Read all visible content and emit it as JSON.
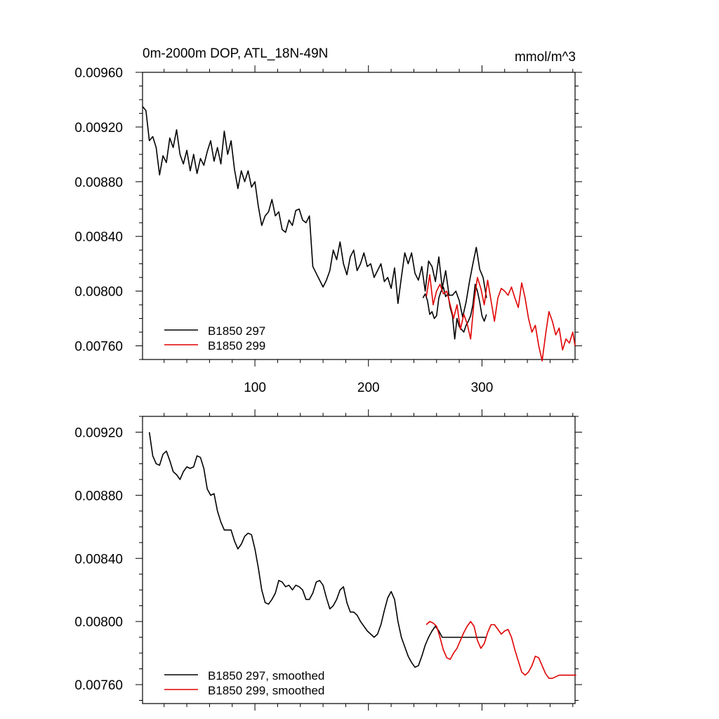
{
  "chart_data": [
    {
      "type": "line",
      "title": "0m-2000m DOP, ATL_18N-49N",
      "units": "mmol/m^3",
      "xlim": [
        1,
        382
      ],
      "ylim": [
        0.0075,
        0.0096
      ],
      "x_ticks": [
        100,
        200,
        300
      ],
      "y_ticks": [
        "0.00760",
        "0.00800",
        "0.00840",
        "0.00880",
        "0.00920",
        "0.00960"
      ],
      "legend": "bottom-left",
      "series": [
        {
          "name": "B1850 297",
          "color": "#000000",
          "x": [
            1,
            4,
            7,
            10,
            13,
            16,
            19,
            22,
            25,
            28,
            31,
            34,
            37,
            40,
            43,
            46,
            49,
            52,
            55,
            58,
            61,
            64,
            67,
            70,
            73,
            76,
            79,
            82,
            85,
            88,
            91,
            94,
            97,
            100,
            103,
            106,
            109,
            112,
            115,
            118,
            121,
            124,
            127,
            130,
            133,
            136,
            139,
            142,
            145,
            148,
            151,
            154,
            157,
            160,
            163,
            166,
            169,
            172,
            175,
            178,
            181,
            184,
            187,
            190,
            193,
            196,
            199,
            202,
            205,
            208,
            211,
            214,
            217,
            220,
            223,
            226,
            229,
            232,
            235,
            238,
            241,
            244,
            247,
            250,
            253,
            256,
            259,
            262,
            265,
            268,
            271,
            274,
            277,
            280,
            283,
            286,
            289,
            292,
            295,
            298,
            301,
            304
          ],
          "y": [
            0.00935,
            0.00932,
            0.0091,
            0.00913,
            0.00905,
            0.00885,
            0.00899,
            0.00894,
            0.00912,
            0.00905,
            0.00918,
            0.009,
            0.00893,
            0.00903,
            0.00888,
            0.009,
            0.00886,
            0.00897,
            0.00892,
            0.00902,
            0.0091,
            0.00895,
            0.00905,
            0.00893,
            0.00917,
            0.009,
            0.0091,
            0.00889,
            0.00875,
            0.00888,
            0.0088,
            0.00888,
            0.00876,
            0.0088,
            0.00862,
            0.00848,
            0.00855,
            0.00858,
            0.00867,
            0.00855,
            0.00858,
            0.00845,
            0.00843,
            0.00852,
            0.00848,
            0.00859,
            0.0086,
            0.00852,
            0.0085,
            0.00855,
            0.00818,
            0.00813,
            0.00808,
            0.00803,
            0.00808,
            0.00815,
            0.0083,
            0.00823,
            0.00836,
            0.0082,
            0.00812,
            0.00825,
            0.0083,
            0.00815,
            0.0082,
            0.00828,
            0.00818,
            0.0082,
            0.0081,
            0.00815,
            0.0082,
            0.00807,
            0.0081,
            0.00802,
            0.00817,
            0.00791,
            0.0081,
            0.00828,
            0.0082,
            0.00828,
            0.00813,
            0.00808,
            0.00818,
            0.008,
            0.00822,
            0.00818,
            0.00807,
            0.00825,
            0.00802,
            0.00815,
            0.00797,
            0.00797,
            0.008,
            0.00793,
            0.00781,
            0.00792,
            0.00807,
            0.0082,
            0.00832,
            0.00816,
            0.0081,
            0.00795
          ],
          "x2": [
            248,
            250,
            252,
            254,
            256,
            258,
            260,
            262,
            264,
            266,
            268,
            270,
            272,
            274,
            276,
            278,
            280,
            282,
            284,
            286,
            288,
            290,
            292,
            294,
            296,
            298,
            300,
            302,
            304
          ],
          "y2": [
            0.00795,
            0.00798,
            0.00793,
            0.00783,
            0.00785,
            0.0078,
            0.00782,
            0.00795,
            0.008,
            0.00803,
            0.00796,
            0.00798,
            0.00788,
            0.00782,
            0.00765,
            0.0078,
            0.00774,
            0.00772,
            0.0077,
            0.00775,
            0.00778,
            0.00782,
            0.0079,
            0.00805,
            0.008,
            0.00792,
            0.00782,
            0.00778,
            0.00783
          ]
        },
        {
          "name": "B1850 299",
          "color": "#e00000",
          "x": [
            251,
            254,
            257,
            260,
            263,
            266,
            269,
            272,
            275,
            278,
            281,
            284,
            287,
            290,
            293,
            296,
            299,
            302,
            305,
            308,
            311,
            314,
            317,
            320,
            323,
            326,
            329,
            332,
            335,
            338,
            341,
            344,
            347,
            350,
            353,
            356,
            359,
            362,
            365,
            368,
            371,
            374,
            377,
            380,
            382
          ],
          "y": [
            0.00796,
            0.00812,
            0.0079,
            0.008,
            0.00805,
            0.00798,
            0.008,
            0.0079,
            0.0078,
            0.0079,
            0.00772,
            0.00783,
            0.00776,
            0.00765,
            0.00792,
            0.0081,
            0.00802,
            0.0079,
            0.00808,
            0.00793,
            0.00778,
            0.00795,
            0.00802,
            0.008,
            0.00797,
            0.00803,
            0.00795,
            0.00788,
            0.00806,
            0.00795,
            0.0078,
            0.0077,
            0.00775,
            0.0076,
            0.00749,
            0.00768,
            0.00785,
            0.00778,
            0.00768,
            0.00773,
            0.00757,
            0.00765,
            0.00762,
            0.0077,
            0.0076
          ]
        }
      ]
    },
    {
      "type": "line",
      "xlim": [
        1,
        382
      ],
      "ylim": [
        0.00748,
        0.0093
      ],
      "x_ticks": [
        100,
        200,
        300
      ],
      "y_ticks": [
        "0.00760",
        "0.00800",
        "0.00840",
        "0.00880",
        "0.00920"
      ],
      "legend": "bottom-left",
      "series": [
        {
          "name": "B1850 297, smoothed",
          "color": "#000000",
          "x": [
            7,
            10,
            13,
            16,
            19,
            22,
            25,
            28,
            31,
            34,
            37,
            40,
            43,
            46,
            49,
            52,
            55,
            58,
            61,
            64,
            67,
            70,
            73,
            76,
            79,
            82,
            85,
            88,
            91,
            94,
            97,
            100,
            103,
            106,
            109,
            112,
            115,
            118,
            121,
            124,
            127,
            130,
            133,
            136,
            139,
            142,
            145,
            148,
            151,
            154,
            157,
            160,
            163,
            166,
            169,
            172,
            175,
            178,
            181,
            184,
            187,
            190,
            193,
            196,
            199,
            202,
            205,
            208,
            211,
            214,
            217,
            220,
            223,
            226,
            229,
            232,
            235,
            238,
            241,
            244,
            247,
            250,
            253,
            256,
            259,
            262,
            265,
            268,
            271,
            274,
            277,
            280,
            283,
            286,
            289,
            292,
            295,
            298,
            301,
            304
          ],
          "y": [
            0.0092,
            0.00905,
            0.009,
            0.00899,
            0.00906,
            0.00908,
            0.00902,
            0.00895,
            0.00893,
            0.0089,
            0.00895,
            0.00898,
            0.00897,
            0.00898,
            0.00905,
            0.00904,
            0.00897,
            0.00884,
            0.0088,
            0.00881,
            0.0087,
            0.00863,
            0.00858,
            0.00858,
            0.00858,
            0.00851,
            0.00846,
            0.00849,
            0.00854,
            0.00856,
            0.00855,
            0.00846,
            0.00834,
            0.0082,
            0.00812,
            0.00811,
            0.00814,
            0.00818,
            0.00826,
            0.00825,
            0.00822,
            0.00823,
            0.0082,
            0.00823,
            0.00822,
            0.0082,
            0.00814,
            0.00814,
            0.00818,
            0.00825,
            0.00826,
            0.00823,
            0.00815,
            0.00808,
            0.0081,
            0.00814,
            0.0082,
            0.00822,
            0.00812,
            0.00806,
            0.00806,
            0.00804,
            0.008,
            0.00797,
            0.00794,
            0.00792,
            0.0079,
            0.00792,
            0.00798,
            0.00807,
            0.00815,
            0.00819,
            0.00814,
            0.008,
            0.0079,
            0.00784,
            0.00778,
            0.00774,
            0.00771,
            0.00772,
            0.00778,
            0.00785,
            0.0079,
            0.00794,
            0.00797,
            0.00794,
            0.0079,
            0.0079,
            0.0079,
            0.0079,
            0.0079,
            0.0079,
            0.0079,
            0.0079,
            0.0079,
            0.0079,
            0.0079,
            0.0079,
            0.0079,
            0.0079
          ],
          "x_end": 304
        },
        {
          "name": "B1850 299, smoothed",
          "color": "#e00000",
          "x": [
            251,
            254,
            257,
            260,
            263,
            266,
            269,
            272,
            275,
            278,
            281,
            284,
            287,
            290,
            293,
            296,
            299,
            302,
            305,
            308,
            311,
            314,
            317,
            320,
            323,
            326,
            329,
            332,
            335,
            338,
            341,
            344,
            347,
            350,
            353,
            356,
            359,
            362,
            365,
            368,
            371,
            374,
            377,
            380,
            383
          ],
          "y": [
            0.00798,
            0.008,
            0.00799,
            0.00797,
            0.0079,
            0.00782,
            0.00777,
            0.00776,
            0.0078,
            0.00783,
            0.00788,
            0.00793,
            0.00797,
            0.008,
            0.00797,
            0.00788,
            0.00783,
            0.00786,
            0.00793,
            0.00798,
            0.00798,
            0.00795,
            0.00792,
            0.00794,
            0.00795,
            0.0079,
            0.00782,
            0.00775,
            0.00768,
            0.00766,
            0.00768,
            0.00772,
            0.00778,
            0.00777,
            0.00772,
            0.00767,
            0.00764,
            0.00764,
            0.00765,
            0.00766,
            0.00766,
            0.00766,
            0.00766,
            0.00766,
            0.00766
          ]
        }
      ]
    }
  ]
}
